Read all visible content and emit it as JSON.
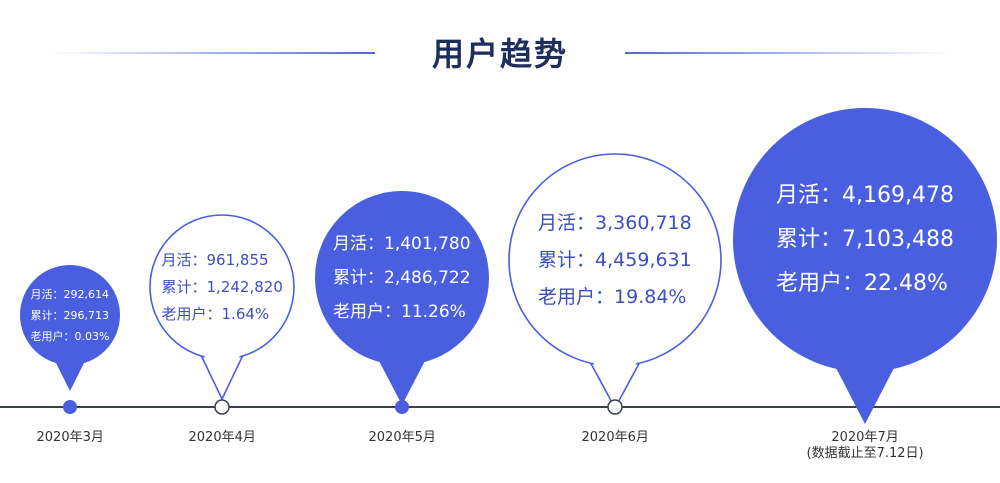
{
  "title": "用户趋势",
  "colors": {
    "accent": "#4a5ee0",
    "outline": "#4a5ee0",
    "filled_text": "#ffffff",
    "outline_text": "#3d4fbf",
    "timeline": "#3a3f4a"
  },
  "chart_data": {
    "type": "bubble-timeline",
    "points": [
      {
        "date": "2020年3月",
        "note": "",
        "monthly_active_label": "月活：",
        "monthly_active": "292,614",
        "cumulative_label": "累计：",
        "cumulative": "296,713",
        "old_users_label": "老用户：",
        "old_users": "0.03%",
        "style": "filled"
      },
      {
        "date": "2020年4月",
        "note": "",
        "monthly_active_label": "月活：",
        "monthly_active": "961,855",
        "cumulative_label": "累计：",
        "cumulative": "1,242,820",
        "old_users_label": "老用户：",
        "old_users": "1.64%",
        "style": "outline"
      },
      {
        "date": "2020年5月",
        "note": "",
        "monthly_active_label": "月活：",
        "monthly_active": "1,401,780",
        "cumulative_label": "累计：",
        "cumulative": "2,486,722",
        "old_users_label": "老用户：",
        "old_users": "11.26%",
        "style": "filled"
      },
      {
        "date": "2020年6月",
        "note": "",
        "monthly_active_label": "月活：",
        "monthly_active": "3,360,718",
        "cumulative_label": "累计：",
        "cumulative": "4,459,631",
        "old_users_label": "老用户：",
        "old_users": "19.84%",
        "style": "outline"
      },
      {
        "date": "2020年7月",
        "note": "(数据截止至7.12日)",
        "monthly_active_label": "月活：",
        "monthly_active": "4,169,478",
        "cumulative_label": "累计：",
        "cumulative": "7,103,488",
        "old_users_label": "老用户：",
        "old_users": "22.48%",
        "style": "filled"
      }
    ]
  }
}
